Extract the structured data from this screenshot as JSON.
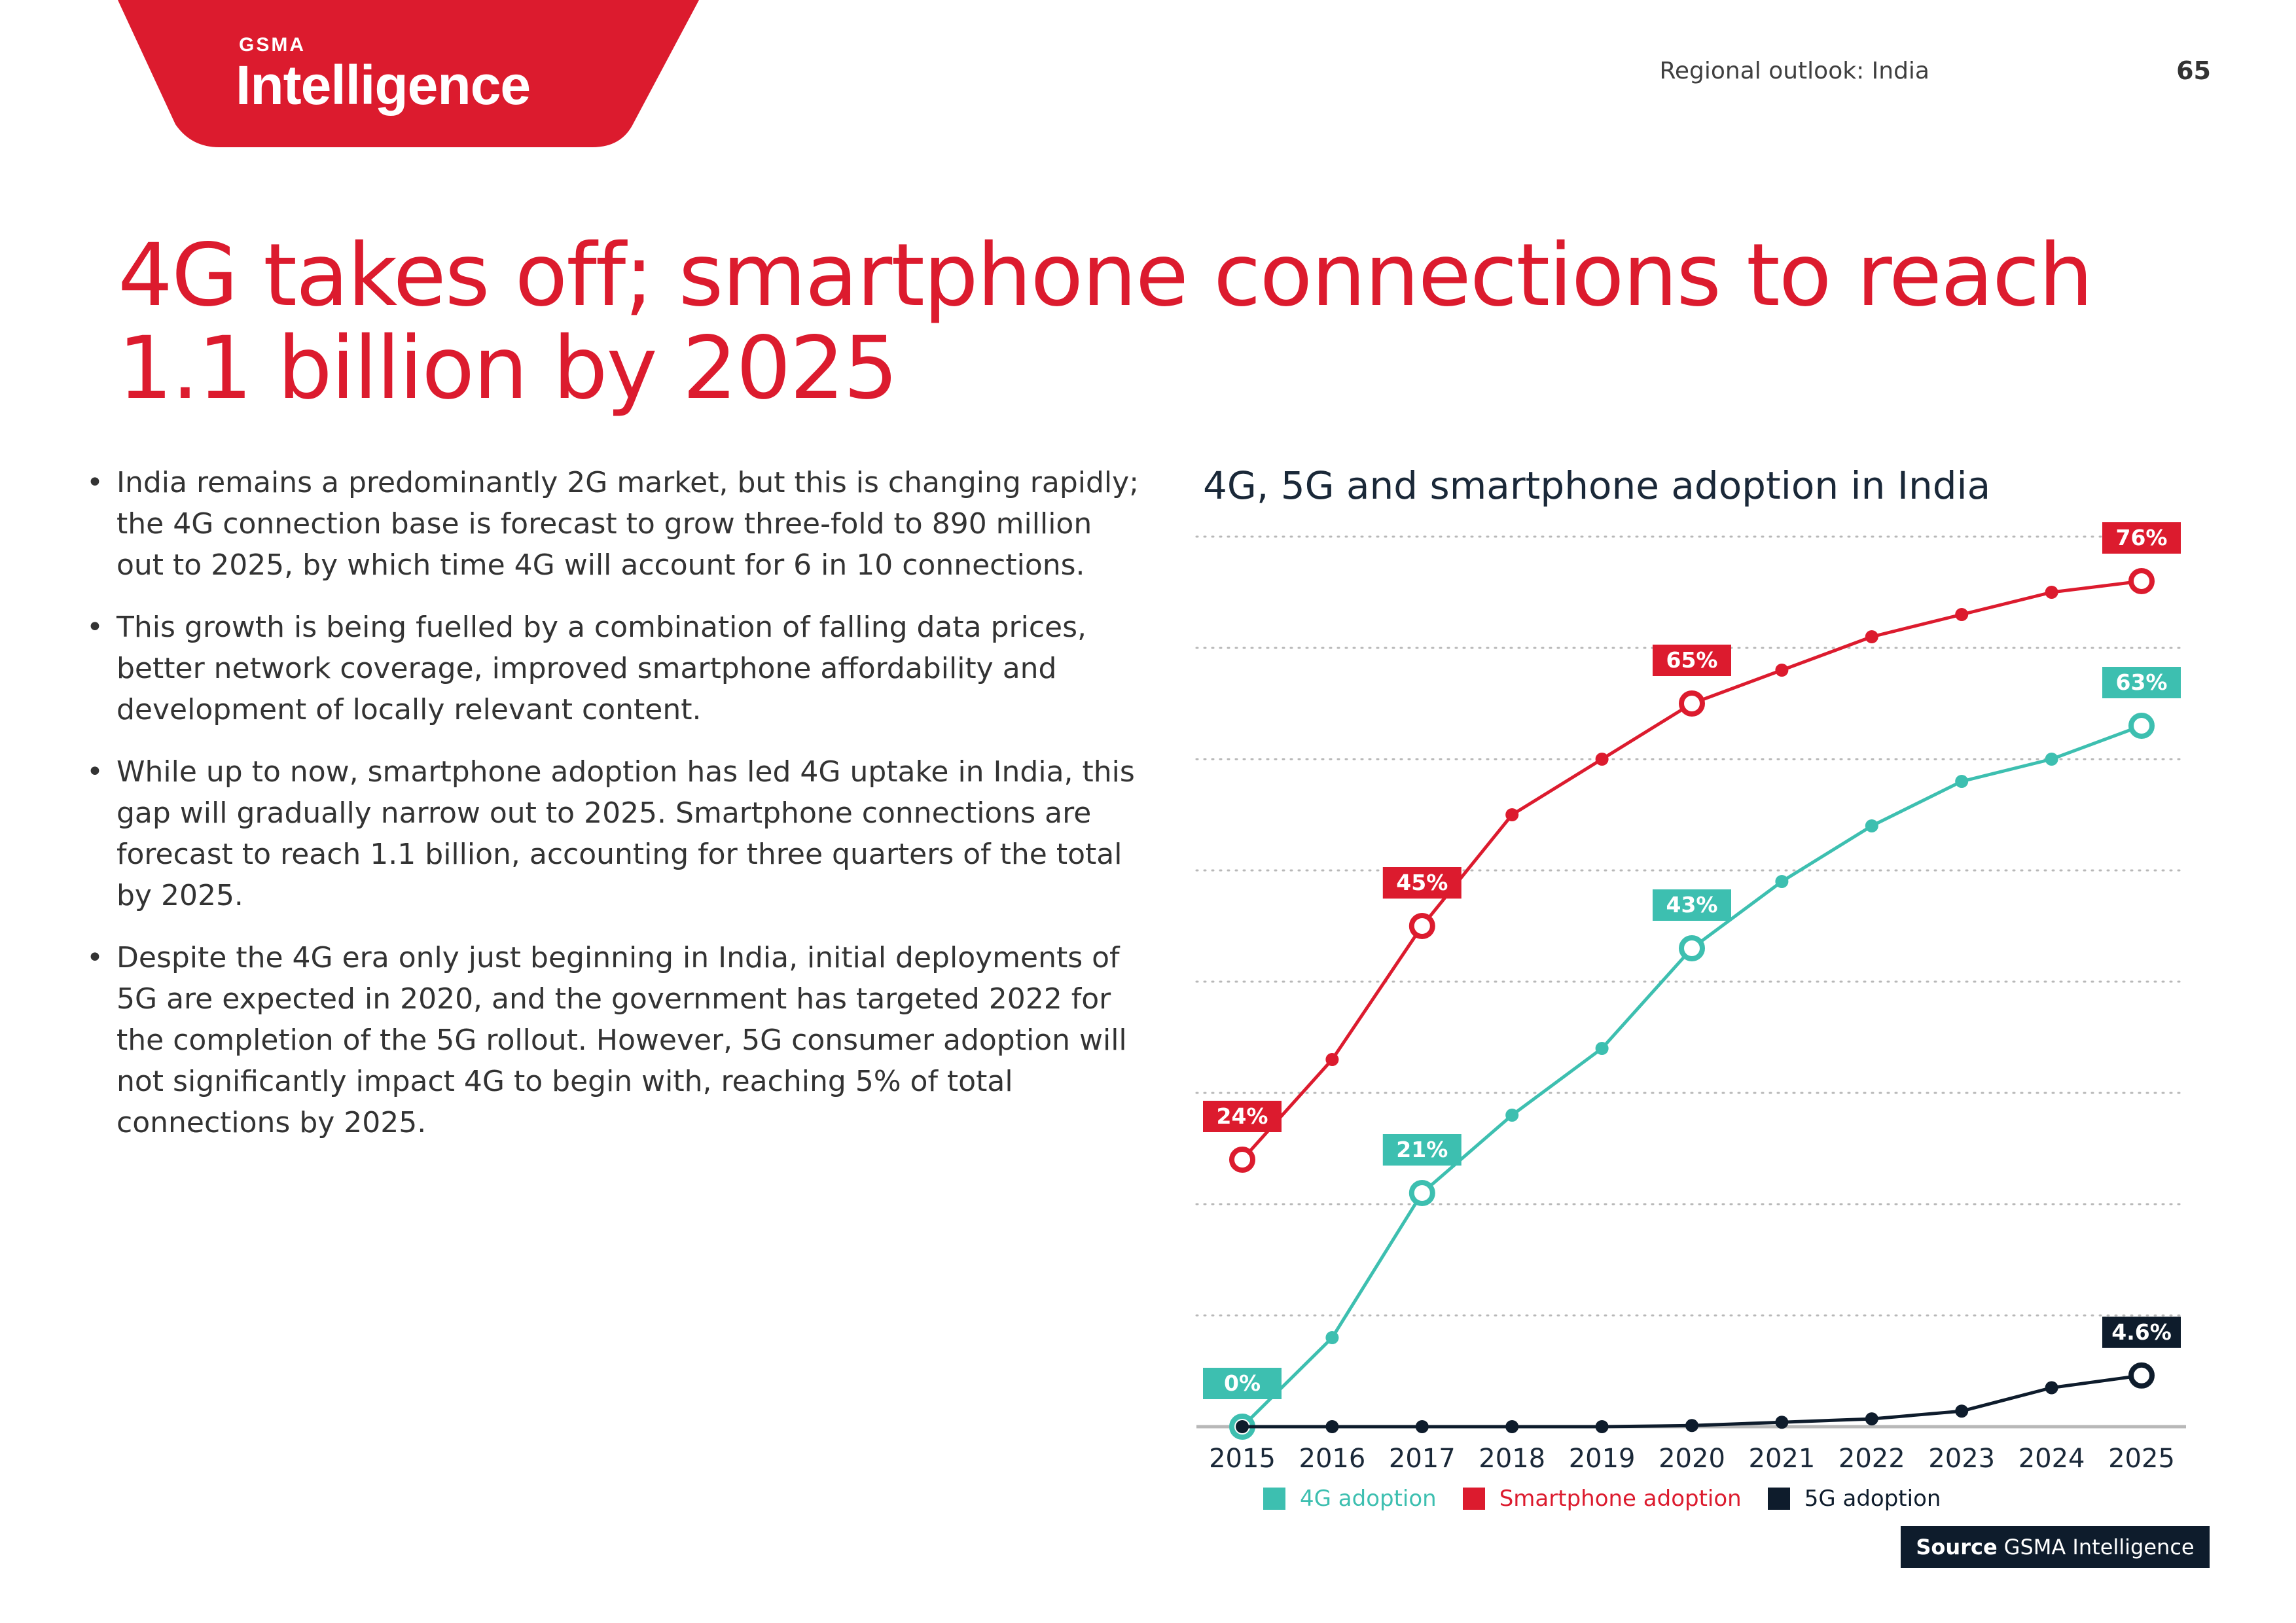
{
  "brand": {
    "gsma": "GSMA",
    "wordmark": "Intelligence",
    "color": "#dc1b2e"
  },
  "header": {
    "section": "Regional outlook: India",
    "page_number": "65"
  },
  "page_title": "4G takes off; smartphone connections to reach 1.1 billion by 2025",
  "bullets": [
    "India remains a predominantly 2G market, but this is changing rapidly; the 4G connection base is forecast to grow three-fold to 890 million out to 2025, by which time 4G will account for 6 in 10 connections.",
    "This growth is being fuelled by a combination of falling data prices, better network coverage, improved smartphone affordability and development of locally relevant content.",
    "While up to now, smartphone adoption has led 4G uptake in India, this gap will gradually narrow out to 2025. Smartphone connections are forecast to reach 1.1 billion, accounting for three quarters of the total by 2025.",
    "Despite the 4G era only just beginning in India, initial deployments of 5G are expected in 2020, and the government has targeted 2022 for the completion of the 5G rollout. However, 5G consumer adoption will not significantly impact 4G to begin with, reaching 5% of total connections by 2025."
  ],
  "source": {
    "label": "Source",
    "text": "GSMA Intelligence"
  },
  "chart_data": {
    "type": "line",
    "title": "4G, 5G and smartphone adoption in India",
    "x": [
      "2015",
      "2016",
      "2017",
      "2018",
      "2019",
      "2020",
      "2021",
      "2022",
      "2023",
      "2024",
      "2025"
    ],
    "ylim": [
      0,
      80
    ],
    "grid": true,
    "legend_position": "bottom",
    "series": [
      {
        "name": "4G adoption",
        "color": "#3dbfb0",
        "values": [
          0,
          8,
          21,
          28,
          34,
          43,
          49,
          54,
          58,
          60,
          63
        ],
        "labels": {
          "0": "0%",
          "2": "21%",
          "5": "43%",
          "10": "63%"
        }
      },
      {
        "name": "Smartphone adoption",
        "color": "#dc1b2e",
        "values": [
          24,
          33,
          45,
          55,
          60,
          65,
          68,
          71,
          73,
          75,
          76
        ],
        "labels": {
          "0": "24%",
          "2": "45%",
          "5": "65%",
          "10": "76%"
        }
      },
      {
        "name": "5G adoption",
        "color": "#0e1c2c",
        "values": [
          0,
          0,
          0,
          0,
          0,
          0.1,
          0.4,
          0.7,
          1.4,
          3.5,
          4.6
        ],
        "labels": {
          "10": "4.6%"
        }
      }
    ]
  }
}
